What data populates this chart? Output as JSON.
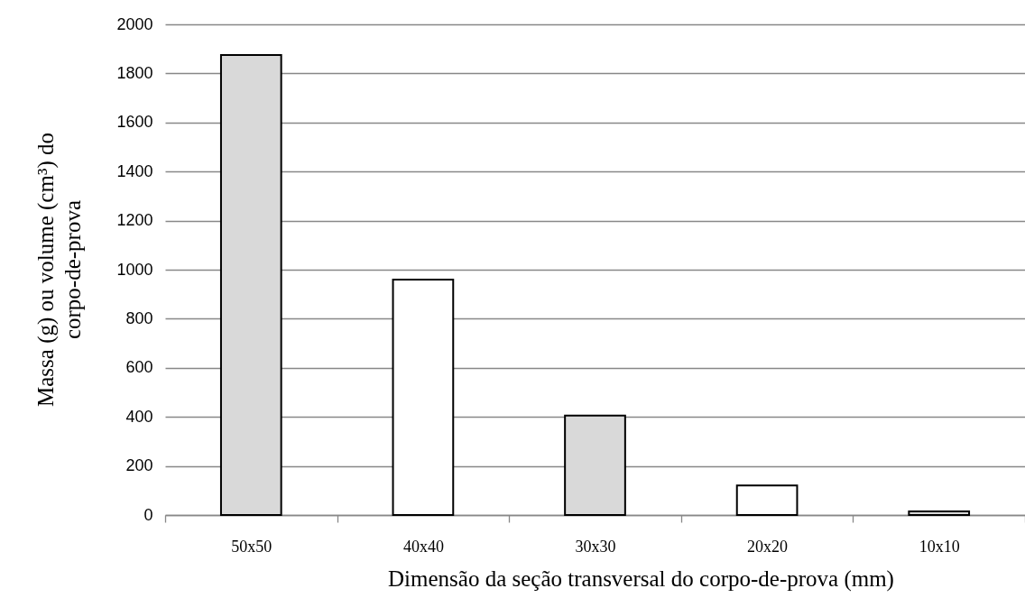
{
  "chart_data": {
    "type": "bar",
    "categories": [
      "50x50",
      "40x40",
      "30x30",
      "20x20",
      "10x10"
    ],
    "values": [
      1875,
      960,
      405,
      120,
      15
    ],
    "colors": [
      "#d9d9d9",
      "#ffffff",
      "#d9d9d9",
      "#ffffff",
      "#d9d9d9"
    ],
    "xlabel": "Dimensão da seção transversal do corpo-de-prova (mm)",
    "ylabel": "Massa (g) ou volume (cm³) do corpo-de-prova",
    "ylim": [
      0,
      2000
    ],
    "yticks": [
      0,
      200,
      400,
      600,
      800,
      1000,
      1200,
      1400,
      1600,
      1800,
      2000
    ],
    "grid": "y"
  }
}
